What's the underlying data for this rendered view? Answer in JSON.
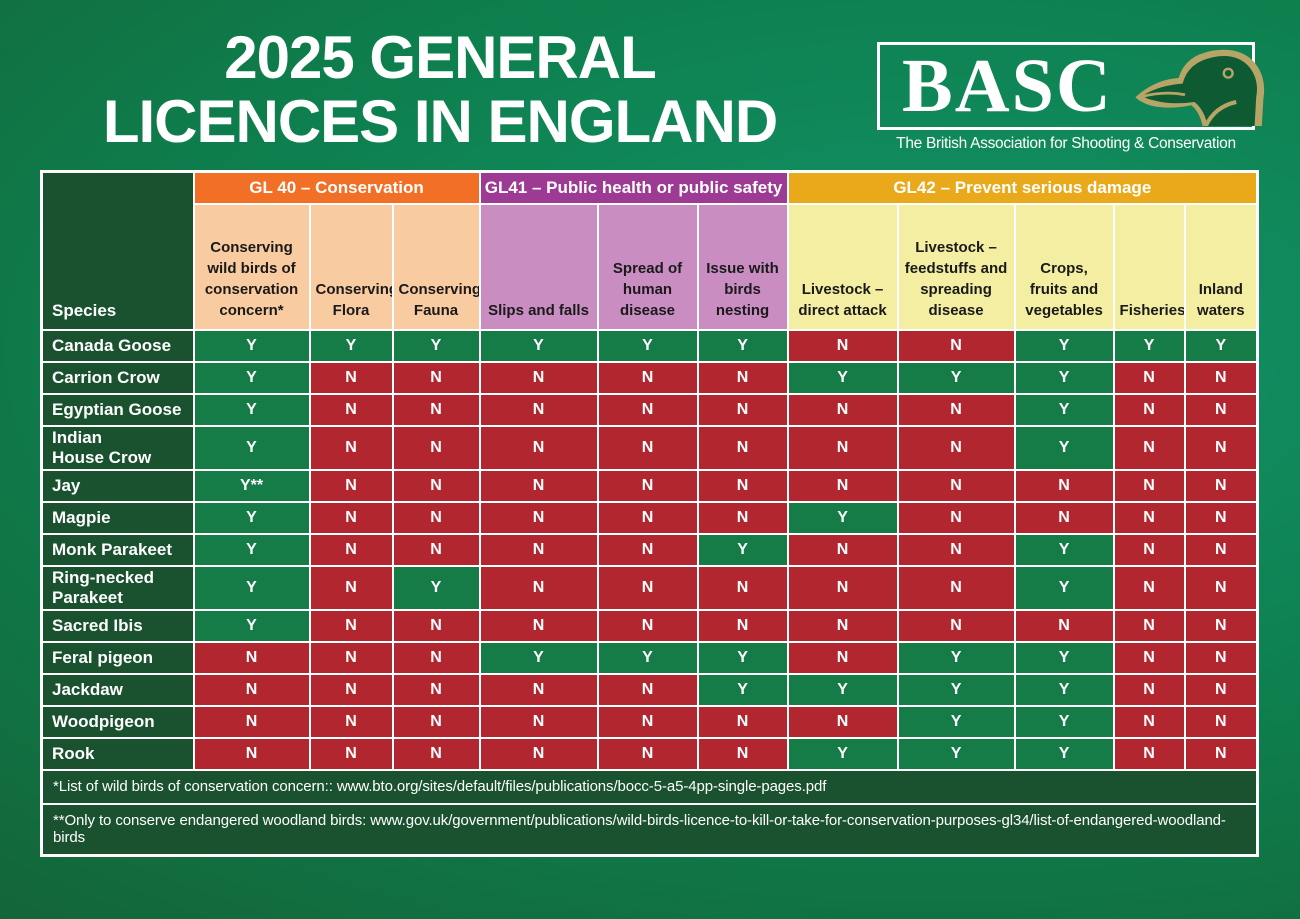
{
  "title": {
    "line1": "2025 GENERAL",
    "line2": "LICENCES IN ENGLAND"
  },
  "logo": {
    "acronym": "BASC",
    "tagline": "The British Association for Shooting & Conservation",
    "duck_icon": "duck-head-icon"
  },
  "colors": {
    "background_corner": "#155c31",
    "background_mid": "#0e7f4e",
    "background_highlight": "#12946a",
    "dark_green_cell": "#1a5230",
    "yes_green": "#157b47",
    "no_red": "#b1262f",
    "gl40_header": "#f26f26",
    "gl40_cell": "#f9cba0",
    "gl41_header": "#9c3a94",
    "gl41_cell": "#ca8dc2",
    "gl42_header": "#e9a91b",
    "gl42_cell": "#f3eea2",
    "border": "#ffffff",
    "logo_duck_green": "#0e5b33",
    "logo_duck_tan": "#b7a568"
  },
  "table": {
    "species_header": "Species",
    "groups": [
      {
        "label": "GL 40 – Conservation",
        "span": 3
      },
      {
        "label": "GL41 – Public health or public safety",
        "span": 3
      },
      {
        "label": "GL42 – Prevent serious damage",
        "span": 5
      }
    ],
    "columns": [
      {
        "label": "Conserving wild birds of conservation concern*",
        "group": 0
      },
      {
        "label": "Conserving Flora",
        "group": 0
      },
      {
        "label": "Conserving Fauna",
        "group": 0
      },
      {
        "label": "Slips and falls",
        "group": 1
      },
      {
        "label": "Spread of human disease",
        "group": 1
      },
      {
        "label": "Issue with birds nesting",
        "group": 1
      },
      {
        "label": "Livestock – direct attack",
        "group": 2
      },
      {
        "label": "Livestock – feedstuffs and spreading disease",
        "group": 2
      },
      {
        "label": "Crops, fruits and vegetables",
        "group": 2
      },
      {
        "label": "Fisheries",
        "group": 2
      },
      {
        "label": "Inland waters",
        "group": 2
      }
    ],
    "rows": [
      {
        "species": "Canada Goose",
        "values": [
          "Y",
          "Y",
          "Y",
          "Y",
          "Y",
          "Y",
          "N",
          "N",
          "Y",
          "Y",
          "Y"
        ]
      },
      {
        "species": "Carrion Crow",
        "values": [
          "Y",
          "N",
          "N",
          "N",
          "N",
          "N",
          "Y",
          "Y",
          "Y",
          "N",
          "N"
        ]
      },
      {
        "species": "Egyptian Goose",
        "values": [
          "Y",
          "N",
          "N",
          "N",
          "N",
          "N",
          "N",
          "N",
          "Y",
          "N",
          "N"
        ]
      },
      {
        "species": "Indian\nHouse Crow",
        "values": [
          "Y",
          "N",
          "N",
          "N",
          "N",
          "N",
          "N",
          "N",
          "Y",
          "N",
          "N"
        ]
      },
      {
        "species": "Jay",
        "values": [
          "Y**",
          "N",
          "N",
          "N",
          "N",
          "N",
          "N",
          "N",
          "N",
          "N",
          "N"
        ]
      },
      {
        "species": "Magpie",
        "values": [
          "Y",
          "N",
          "N",
          "N",
          "N",
          "N",
          "Y",
          "N",
          "N",
          "N",
          "N"
        ]
      },
      {
        "species": "Monk Parakeet",
        "values": [
          "Y",
          "N",
          "N",
          "N",
          "N",
          "Y",
          "N",
          "N",
          "Y",
          "N",
          "N"
        ]
      },
      {
        "species": "Ring-necked\nParakeet",
        "values": [
          "Y",
          "N",
          "Y",
          "N",
          "N",
          "N",
          "N",
          "N",
          "Y",
          "N",
          "N"
        ]
      },
      {
        "species": "Sacred Ibis",
        "values": [
          "Y",
          "N",
          "N",
          "N",
          "N",
          "N",
          "N",
          "N",
          "N",
          "N",
          "N"
        ]
      },
      {
        "species": "Feral pigeon",
        "values": [
          "N",
          "N",
          "N",
          "Y",
          "Y",
          "Y",
          "N",
          "Y",
          "Y",
          "N",
          "N"
        ]
      },
      {
        "species": "Jackdaw",
        "values": [
          "N",
          "N",
          "N",
          "N",
          "N",
          "Y",
          "Y",
          "Y",
          "Y",
          "N",
          "N"
        ]
      },
      {
        "species": "Woodpigeon",
        "values": [
          "N",
          "N",
          "N",
          "N",
          "N",
          "N",
          "N",
          "Y",
          "Y",
          "N",
          "N"
        ]
      },
      {
        "species": "Rook",
        "values": [
          "N",
          "N",
          "N",
          "N",
          "N",
          "N",
          "Y",
          "Y",
          "Y",
          "N",
          "N"
        ]
      }
    ],
    "footnotes": [
      "*List of wild birds of conservation concern:: www.bto.org/sites/default/files/publications/bocc-5-a5-4pp-single-pages.pdf",
      "**Only to conserve endangered woodland birds: www.gov.uk/government/publications/wild-birds-licence-to-kill-or-take-for-conservation-purposes-gl34/list-of-endangered-woodland-birds"
    ]
  }
}
